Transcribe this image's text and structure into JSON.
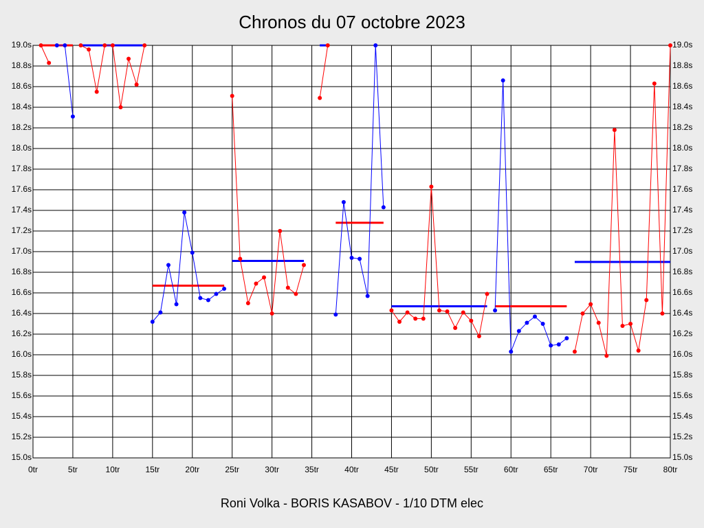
{
  "chart_data": {
    "type": "line",
    "title": "Chronos du 07 octobre 2023",
    "footer": "Roni Volka - BORIS KASABOV - 1/10 DTM elec",
    "x": [
      1,
      2,
      3,
      4,
      5,
      6,
      7,
      8,
      9,
      10,
      11,
      12,
      13,
      14,
      15,
      16,
      17,
      18,
      19,
      20,
      21,
      22,
      23,
      24,
      25,
      26,
      27,
      28,
      29,
      30,
      31,
      32,
      33,
      34,
      35,
      36,
      37,
      38,
      39,
      40,
      41,
      42,
      43,
      44,
      45,
      46,
      47,
      48,
      49,
      50,
      51,
      52,
      53,
      54,
      55,
      56,
      57,
      58,
      59,
      60,
      61,
      62,
      63,
      64,
      65,
      66,
      67,
      68,
      69,
      70,
      71,
      72,
      73,
      74,
      75,
      76,
      77,
      78,
      79,
      80
    ],
    "series": [
      {
        "color": "#ff0000",
        "values": [
          19.0,
          18.83,
          null,
          null,
          null,
          19.0,
          18.96,
          18.55,
          19.0,
          19.0,
          18.4,
          18.87,
          18.62,
          19.0,
          null,
          null,
          null,
          null,
          null,
          null,
          null,
          null,
          null,
          null,
          18.51,
          16.93,
          16.5,
          16.69,
          16.75,
          16.4,
          17.2,
          16.65,
          16.59,
          16.87,
          null,
          18.49,
          19.0,
          null,
          null,
          null,
          null,
          null,
          null,
          null,
          16.43,
          16.32,
          16.41,
          16.35,
          16.35,
          17.63,
          16.43,
          16.42,
          16.26,
          16.41,
          16.33,
          16.18,
          16.59,
          null,
          null,
          null,
          null,
          null,
          null,
          null,
          null,
          null,
          null,
          16.03,
          16.4,
          16.49,
          16.31,
          15.99,
          18.18,
          16.28,
          16.3,
          16.04,
          16.53,
          18.63,
          16.4,
          19.0
        ]
      },
      {
        "color": "#0000ff",
        "values": [
          null,
          null,
          19.0,
          19.0,
          18.31,
          null,
          null,
          null,
          null,
          null,
          null,
          null,
          null,
          null,
          16.32,
          16.41,
          16.87,
          16.49,
          17.38,
          16.99,
          16.55,
          16.53,
          16.59,
          16.64,
          null,
          null,
          null,
          null,
          null,
          null,
          null,
          null,
          null,
          null,
          null,
          null,
          null,
          16.39,
          17.48,
          16.94,
          16.93,
          16.57,
          19.0,
          17.43,
          null,
          null,
          null,
          null,
          null,
          null,
          null,
          null,
          null,
          null,
          null,
          null,
          null,
          16.43,
          18.66,
          16.03,
          16.23,
          16.31,
          16.37,
          16.3,
          16.09,
          16.1,
          16.16,
          null,
          null,
          null,
          null,
          null,
          null,
          null,
          null,
          null,
          null,
          null,
          null,
          null
        ]
      }
    ],
    "averages": [
      {
        "color": "#ff0000",
        "x": [
          1,
          5
        ],
        "value": 19.0
      },
      {
        "color": "#0000ff",
        "x": [
          6,
          14
        ],
        "value": 19.0
      },
      {
        "color": "#ff0000",
        "x": [
          15,
          24
        ],
        "value": 16.67
      },
      {
        "color": "#0000ff",
        "x": [
          25,
          34
        ],
        "value": 16.91
      },
      {
        "color": "#0000ff",
        "x": [
          36,
          37
        ],
        "value": 19.0
      },
      {
        "color": "#ff0000",
        "x": [
          38,
          44
        ],
        "value": 17.28
      },
      {
        "color": "#0000ff",
        "x": [
          45,
          57
        ],
        "value": 16.47
      },
      {
        "color": "#ff0000",
        "x": [
          58,
          67
        ],
        "value": 16.47
      },
      {
        "color": "#0000ff",
        "x": [
          68,
          80
        ],
        "value": 16.9
      }
    ],
    "xlim": [
      0,
      80
    ],
    "xticks": [
      {
        "value": 0,
        "label": "0tr"
      },
      {
        "value": 5,
        "label": "5tr"
      },
      {
        "value": 10,
        "label": "10tr"
      },
      {
        "value": 15,
        "label": "15tr"
      },
      {
        "value": 20,
        "label": "20tr"
      },
      {
        "value": 25,
        "label": "25tr"
      },
      {
        "value": 30,
        "label": "30tr"
      },
      {
        "value": 35,
        "label": "35tr"
      },
      {
        "value": 40,
        "label": "40tr"
      },
      {
        "value": 45,
        "label": "45tr"
      },
      {
        "value": 50,
        "label": "50tr"
      },
      {
        "value": 55,
        "label": "55tr"
      },
      {
        "value": 60,
        "label": "60tr"
      },
      {
        "value": 65,
        "label": "65tr"
      },
      {
        "value": 70,
        "label": "70tr"
      },
      {
        "value": 75,
        "label": "75tr"
      },
      {
        "value": 80,
        "label": "80tr"
      }
    ],
    "ylim": [
      15.0,
      19.0
    ],
    "yticks": [
      {
        "value": 15.0,
        "label": "15.0s"
      },
      {
        "value": 15.2,
        "label": "15.2s"
      },
      {
        "value": 15.4,
        "label": "15.4s"
      },
      {
        "value": 15.6,
        "label": "15.6s"
      },
      {
        "value": 15.8,
        "label": "15.8s"
      },
      {
        "value": 16.0,
        "label": "16.0s"
      },
      {
        "value": 16.2,
        "label": "16.2s"
      },
      {
        "value": 16.4,
        "label": "16.4s"
      },
      {
        "value": 16.6,
        "label": "16.6s"
      },
      {
        "value": 16.8,
        "label": "16.8s"
      },
      {
        "value": 17.0,
        "label": "17.0s"
      },
      {
        "value": 17.2,
        "label": "17.2s"
      },
      {
        "value": 17.4,
        "label": "17.4s"
      },
      {
        "value": 17.6,
        "label": "17.6s"
      },
      {
        "value": 17.8,
        "label": "17.8s"
      },
      {
        "value": 18.0,
        "label": "18.0s"
      },
      {
        "value": 18.2,
        "label": "18.2s"
      },
      {
        "value": 18.4,
        "label": "18.4s"
      },
      {
        "value": 18.6,
        "label": "18.6s"
      },
      {
        "value": 18.8,
        "label": "18.8s"
      },
      {
        "value": 19.0,
        "label": "19.0s"
      }
    ],
    "grid": true
  }
}
